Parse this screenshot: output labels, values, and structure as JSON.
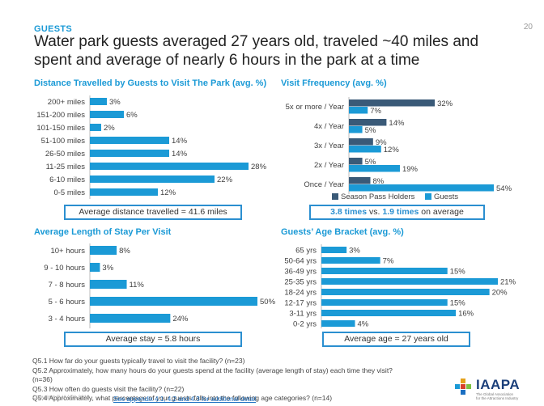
{
  "header": {
    "kicker": "GUESTS",
    "page_number": "20",
    "title": "Water park guests averaged 27 years old, traveled ~40 miles and spent and average of nearly 6 hours in the park at a time"
  },
  "colors": {
    "accent": "#1b9ad6",
    "bar": "#1b9ad6",
    "dark_bar": "#3a5a78",
    "box_border": "#2b8fd0"
  },
  "boxes": {
    "distance": "Average distance travelled = 41.6 miles",
    "frequency_a": "3.8 times",
    "frequency_b": "vs.",
    "frequency_c": "1.9 times",
    "frequency_d": "on average",
    "stay": "Average stay = 5.8 hours",
    "age": "Average age = 27 years old"
  },
  "legend": {
    "season": "Season Pass Holders",
    "guests": "Guests"
  },
  "notes": [
    "Q5.1 How far do your guests typically travel to visit the facility? (n=23)",
    "Q5.2 Approximately, how many hours do your guests spend at the facility (average length of stay) each time they visit? (n=36)",
    "Q5.3 How often do guests visit the facility? (n=22)",
    "Q5.4 Approximately, what percentage of your guests falls into the following age categories? (n=14)"
  ],
  "footer": {
    "link": "See appendix 4.1, 4.2 and 4.3 for additional detail",
    "copyright": "Copyright © IAAPA 2019"
  },
  "logo": {
    "name": "IAAPA",
    "tagline1": "The Global Association",
    "tagline2": "for the Attractions Industry"
  },
  "chart_data": [
    {
      "id": "distance",
      "type": "bar",
      "orientation": "horizontal",
      "title": "Distance Travelled by Guests to Visit The Park (avg. %)",
      "categories": [
        "200+ miles",
        "151-200 miles",
        "101-150 miles",
        "51-100 miles",
        "26-50 miles",
        "11-25 miles",
        "6-10 miles",
        "0-5 miles"
      ],
      "values": [
        3,
        6,
        2,
        14,
        14,
        28,
        22,
        12
      ],
      "labels": [
        "3%",
        "6%",
        "2%",
        "14%",
        "14%",
        "28%",
        "22%",
        "12%"
      ],
      "xlim": [
        0,
        28
      ]
    },
    {
      "id": "frequency",
      "type": "bar",
      "orientation": "horizontal",
      "title": "Visit Ffrequency (avg. %)",
      "categories": [
        "5x or more / Year",
        "4x / Year",
        "3x / Year",
        "2x / Year",
        "Once / Year"
      ],
      "series": [
        {
          "name": "Season Pass Holders",
          "values": [
            32,
            14,
            9,
            5,
            8
          ],
          "labels": [
            "32%",
            "14%",
            "9%",
            "5%",
            "8%"
          ]
        },
        {
          "name": "Guests",
          "values": [
            7,
            5,
            12,
            19,
            54
          ],
          "labels": [
            "7%",
            "5%",
            "12%",
            "19%",
            "54%"
          ]
        }
      ],
      "xlim": [
        0,
        54
      ]
    },
    {
      "id": "stay",
      "type": "bar",
      "orientation": "horizontal",
      "title": "Average Length of Stay Per Visit",
      "categories": [
        "10+ hours",
        "9 - 10 hours",
        "7 - 8 hours",
        "5 - 6 hours",
        "3 - 4 hours"
      ],
      "values": [
        8,
        3,
        11,
        50,
        24
      ],
      "labels": [
        "8%",
        "3%",
        "11%",
        "50%",
        "24%"
      ],
      "xlim": [
        0,
        50
      ]
    },
    {
      "id": "age",
      "type": "bar",
      "orientation": "horizontal",
      "title": "Guests’ Age Bracket (avg. %)",
      "categories": [
        "65 yrs",
        "50-64 yrs",
        "36-49 yrs",
        "25-35 yrs",
        "18-24 yrs",
        "12-17 yrs",
        "3-11 yrs",
        "0-2 yrs"
      ],
      "values": [
        3,
        7,
        15,
        21,
        20,
        15,
        16,
        4
      ],
      "labels": [
        "3%",
        "7%",
        "15%",
        "21%",
        "20%",
        "15%",
        "16%",
        "4%"
      ],
      "xlim": [
        0,
        21
      ]
    }
  ]
}
